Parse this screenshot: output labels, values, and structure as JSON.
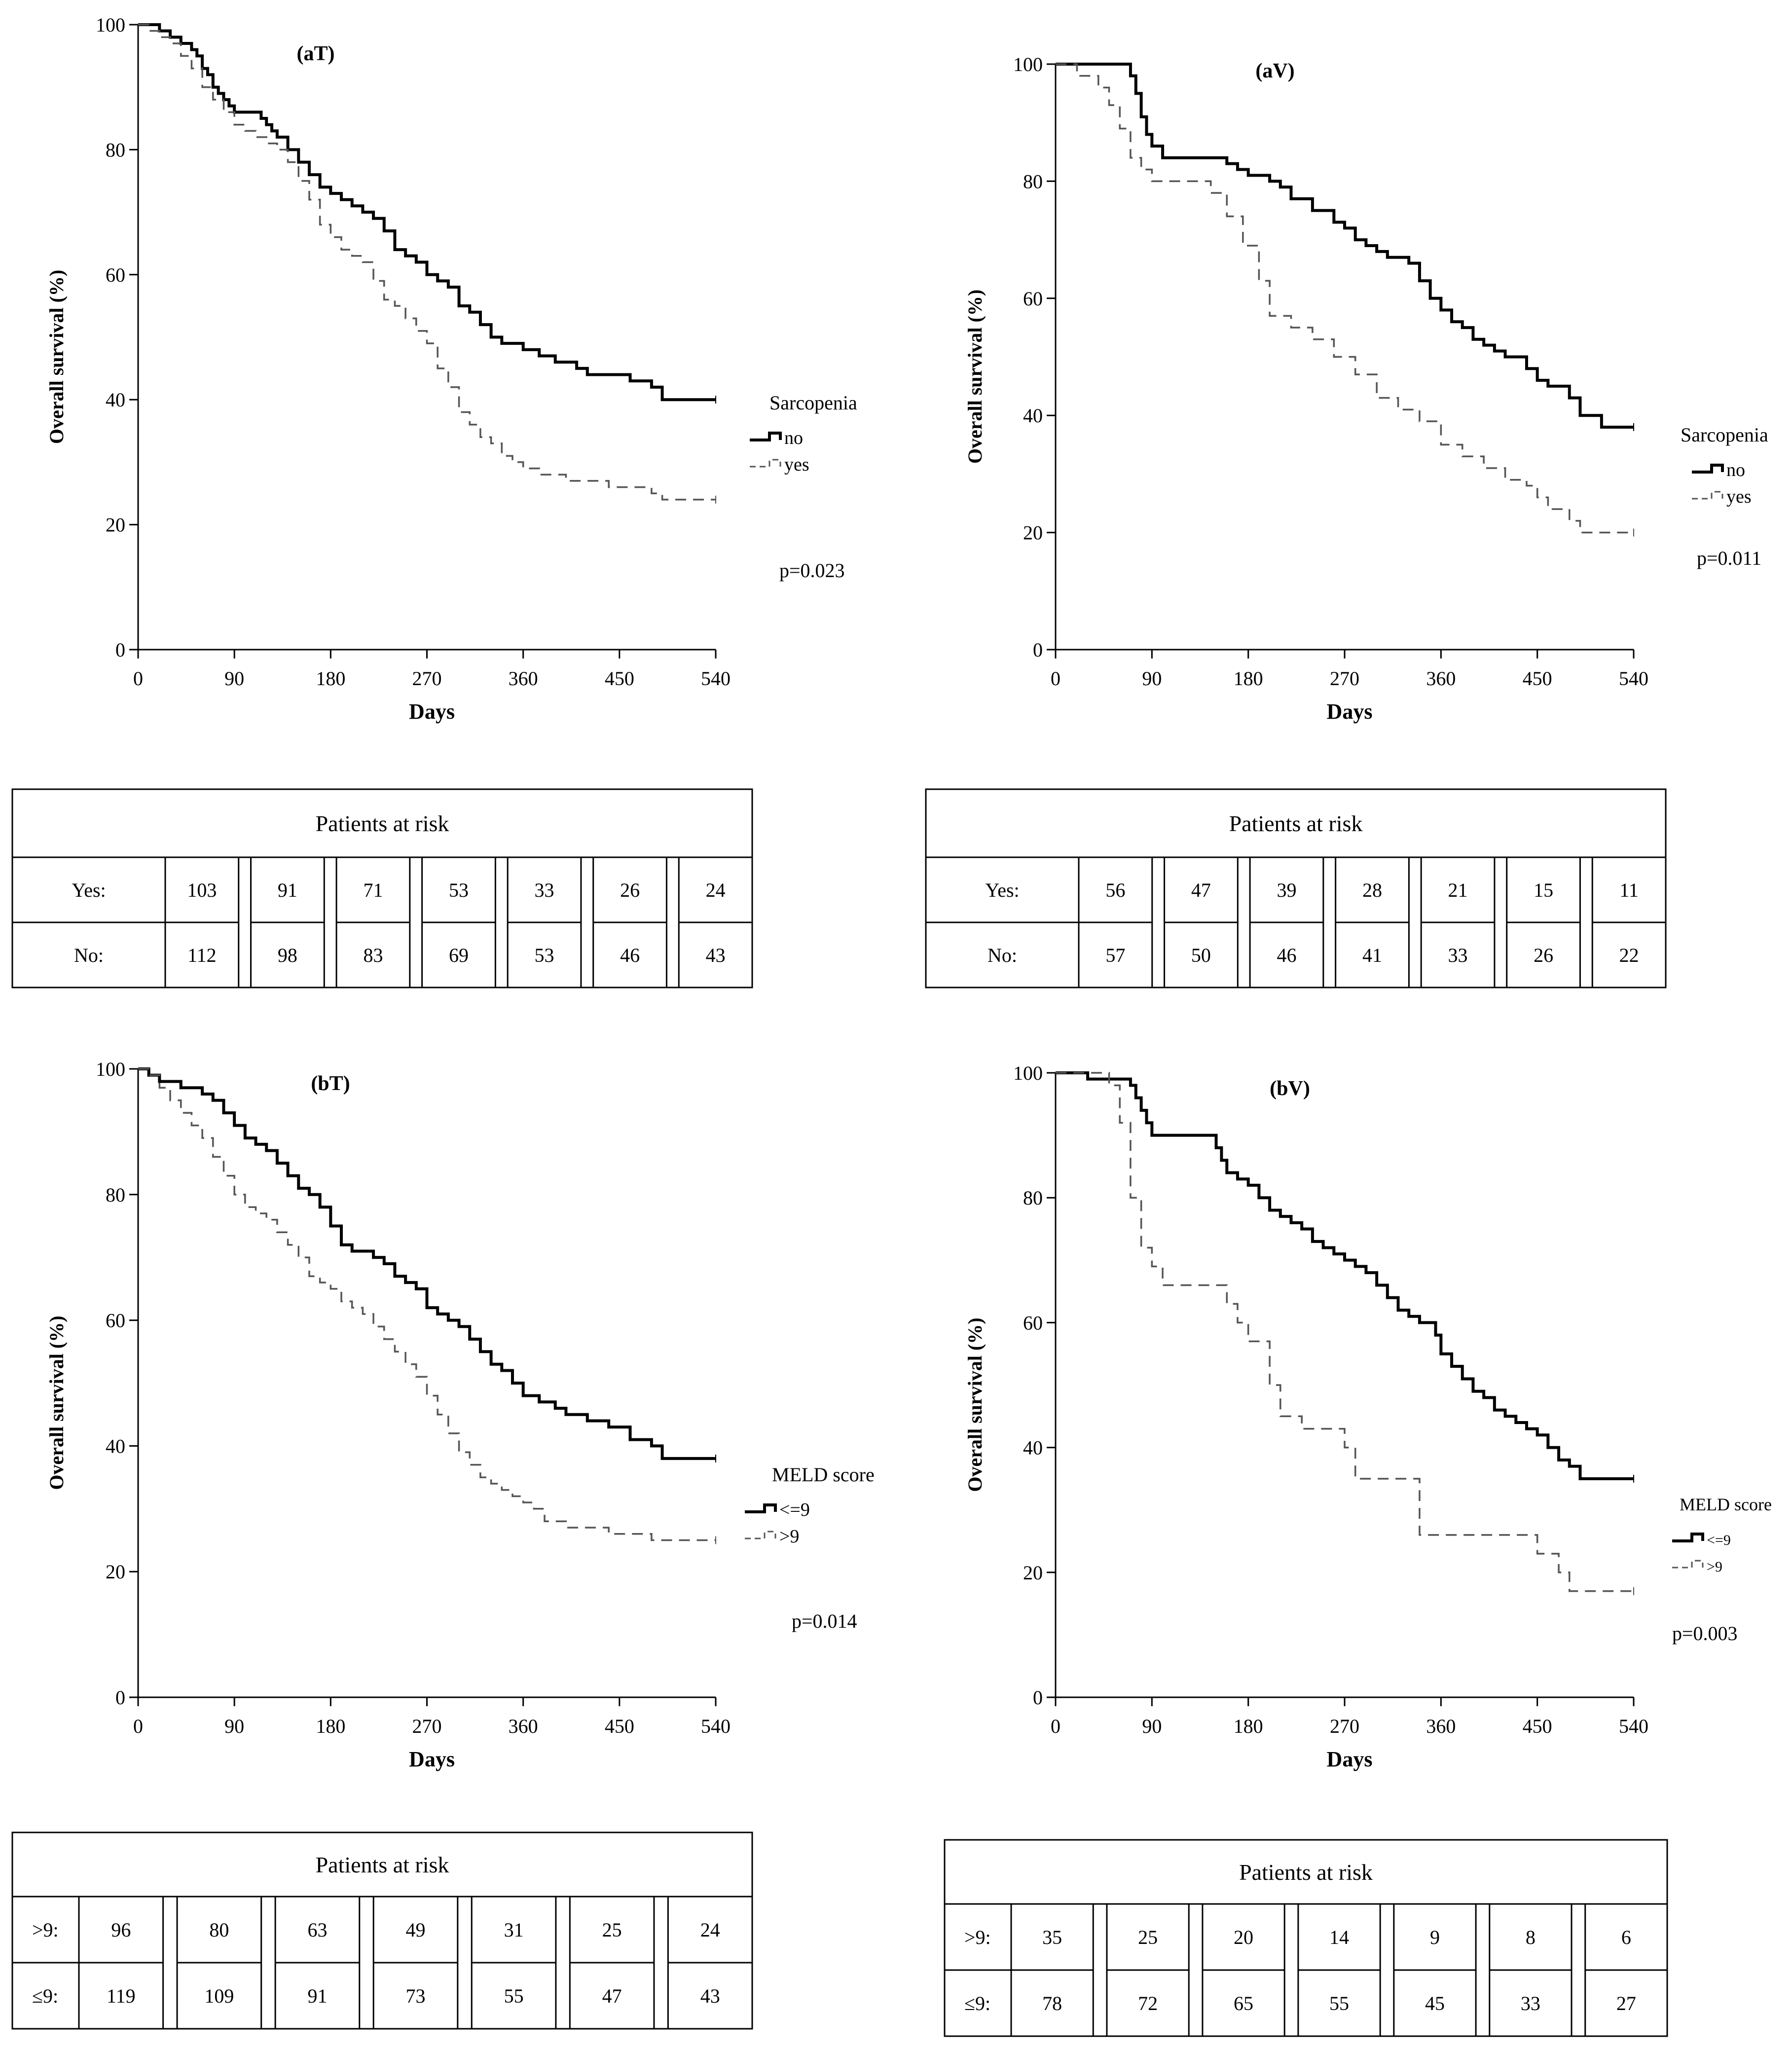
{
  "chart_data": [
    {
      "type": "line",
      "panel": "aT",
      "title": "(aT)",
      "xlabel": "Days",
      "ylabel": "Overall survival (%)",
      "xlim": [
        0,
        540
      ],
      "ylim": [
        0,
        100
      ],
      "xticks": [
        "0",
        "90",
        "180",
        "270",
        "360",
        "450",
        "540"
      ],
      "yticks": [
        "0",
        "20",
        "40",
        "60",
        "80",
        "100"
      ],
      "legend_title": "Sarcopenia",
      "p_value": "p=0.023",
      "series": [
        {
          "name": "no",
          "style": "solid",
          "x": [
            0,
            15,
            20,
            30,
            40,
            50,
            55,
            60,
            65,
            70,
            75,
            80,
            85,
            90,
            100,
            110,
            115,
            120,
            125,
            130,
            140,
            150,
            160,
            170,
            180,
            190,
            200,
            210,
            220,
            230,
            240,
            250,
            260,
            270,
            280,
            290,
            300,
            310,
            320,
            330,
            340,
            350,
            360,
            375,
            390,
            410,
            420,
            440,
            460,
            480,
            490,
            540
          ],
          "y": [
            100,
            100,
            99,
            98,
            97,
            96,
            95,
            93,
            92,
            90,
            89,
            88,
            87,
            86,
            86,
            86,
            85,
            84,
            83,
            82,
            80,
            78,
            76,
            74,
            73,
            72,
            71,
            70,
            69,
            67,
            64,
            63,
            62,
            60,
            59,
            58,
            55,
            54,
            52,
            50,
            49,
            49,
            48,
            47,
            46,
            45,
            44,
            44,
            43,
            42,
            40,
            40
          ]
        },
        {
          "name": "yes",
          "style": "dashed",
          "x": [
            0,
            10,
            20,
            30,
            40,
            50,
            60,
            70,
            80,
            90,
            100,
            110,
            120,
            130,
            140,
            150,
            160,
            170,
            180,
            190,
            200,
            210,
            220,
            230,
            240,
            250,
            260,
            270,
            280,
            290,
            300,
            310,
            320,
            330,
            340,
            350,
            360,
            375,
            390,
            400,
            420,
            440,
            460,
            480,
            490,
            540
          ],
          "y": [
            100,
            99,
            98,
            97,
            95,
            93,
            90,
            88,
            86,
            84,
            83,
            82,
            81,
            80,
            78,
            75,
            72,
            68,
            66,
            64,
            63,
            62,
            59,
            56,
            55,
            53,
            51,
            49,
            45,
            42,
            38,
            36,
            34,
            33,
            31,
            30,
            29,
            28,
            28,
            27,
            27,
            26,
            26,
            25,
            24,
            24
          ]
        }
      ]
    },
    {
      "type": "line",
      "panel": "aV",
      "title": "(aV)",
      "xlabel": "Days",
      "ylabel": "Overall survival (%)",
      "xlim": [
        0,
        540
      ],
      "ylim": [
        0,
        100
      ],
      "xticks": [
        "0",
        "90",
        "180",
        "270",
        "360",
        "450",
        "540"
      ],
      "yticks": [
        "0",
        "20",
        "40",
        "60",
        "80",
        "100"
      ],
      "legend_title": "Sarcopenia",
      "p_value": "p=0.011",
      "series": [
        {
          "name": "no",
          "style": "solid",
          "x": [
            0,
            50,
            70,
            75,
            80,
            85,
            90,
            100,
            120,
            150,
            160,
            170,
            180,
            190,
            200,
            210,
            220,
            240,
            260,
            270,
            280,
            290,
            300,
            310,
            320,
            330,
            340,
            350,
            360,
            370,
            380,
            390,
            400,
            410,
            420,
            440,
            450,
            460,
            480,
            490,
            510,
            540
          ],
          "y": [
            100,
            100,
            98,
            95,
            91,
            88,
            86,
            84,
            84,
            84,
            83,
            82,
            81,
            81,
            80,
            79,
            77,
            75,
            73,
            72,
            70,
            69,
            68,
            67,
            67,
            66,
            63,
            60,
            58,
            56,
            55,
            53,
            52,
            51,
            50,
            48,
            46,
            45,
            43,
            40,
            38,
            38
          ]
        },
        {
          "name": "yes",
          "style": "dashed",
          "x": [
            0,
            20,
            40,
            50,
            60,
            70,
            80,
            90,
            110,
            130,
            145,
            160,
            175,
            190,
            200,
            220,
            240,
            260,
            280,
            300,
            320,
            340,
            360,
            380,
            400,
            420,
            440,
            450,
            460,
            480,
            490,
            540
          ],
          "y": [
            100,
            98,
            96,
            93,
            89,
            84,
            82,
            80,
            80,
            80,
            78,
            74,
            69,
            63,
            57,
            55,
            53,
            50,
            47,
            43,
            41,
            39,
            35,
            33,
            31,
            29,
            28,
            26,
            24,
            22,
            20,
            20
          ]
        }
      ]
    },
    {
      "type": "line",
      "panel": "bT",
      "title": "(bT)",
      "xlabel": "Days",
      "ylabel": "Overall survival (%)",
      "xlim": [
        0,
        540
      ],
      "ylim": [
        0,
        100
      ],
      "xticks": [
        "0",
        "90",
        "180",
        "270",
        "360",
        "450",
        "540"
      ],
      "yticks": [
        "0",
        "20",
        "40",
        "60",
        "80",
        "100"
      ],
      "legend_title": "MELD score",
      "p_value": "p=0.014",
      "series": [
        {
          "name": "<=9",
          "style": "solid",
          "x": [
            0,
            10,
            20,
            30,
            40,
            50,
            60,
            70,
            80,
            90,
            100,
            110,
            120,
            130,
            140,
            150,
            160,
            170,
            180,
            190,
            200,
            210,
            220,
            230,
            240,
            250,
            260,
            270,
            280,
            290,
            300,
            310,
            320,
            330,
            340,
            350,
            360,
            375,
            390,
            400,
            420,
            440,
            460,
            480,
            490,
            540
          ],
          "y": [
            100,
            99,
            98,
            98,
            97,
            97,
            96,
            95,
            93,
            91,
            89,
            88,
            87,
            85,
            83,
            81,
            80,
            78,
            75,
            72,
            71,
            71,
            70,
            69,
            67,
            66,
            65,
            62,
            61,
            60,
            59,
            57,
            55,
            53,
            52,
            50,
            48,
            47,
            46,
            45,
            44,
            43,
            41,
            40,
            38,
            38
          ]
        },
        {
          "name": ">9",
          "style": "dashed",
          "x": [
            0,
            10,
            20,
            30,
            40,
            50,
            60,
            70,
            80,
            90,
            100,
            110,
            120,
            130,
            140,
            150,
            160,
            170,
            180,
            190,
            200,
            210,
            220,
            230,
            240,
            250,
            260,
            270,
            280,
            290,
            300,
            310,
            320,
            330,
            340,
            350,
            360,
            370,
            380,
            390,
            400,
            420,
            440,
            460,
            480,
            540
          ],
          "y": [
            100,
            99,
            97,
            95,
            93,
            91,
            89,
            86,
            83,
            80,
            78,
            77,
            76,
            74,
            72,
            70,
            67,
            66,
            65,
            63,
            62,
            61,
            59,
            57,
            55,
            53,
            51,
            48,
            45,
            42,
            39,
            37,
            35,
            34,
            33,
            32,
            31,
            30,
            28,
            28,
            27,
            27,
            26,
            26,
            25,
            25
          ]
        }
      ]
    },
    {
      "type": "line",
      "panel": "bV",
      "title": "(bV)",
      "xlabel": "Days",
      "ylabel": "Overall survival (%)",
      "xlim": [
        0,
        540
      ],
      "ylim": [
        0,
        100
      ],
      "xticks": [
        "0",
        "90",
        "180",
        "270",
        "360",
        "450",
        "540"
      ],
      "yticks": [
        "0",
        "20",
        "40",
        "60",
        "80",
        "100"
      ],
      "legend_title": "MELD score",
      "p_value": "p=0.003",
      "series": [
        {
          "name": "<=9",
          "style": "solid",
          "x": [
            0,
            20,
            30,
            60,
            70,
            75,
            80,
            85,
            90,
            100,
            110,
            120,
            140,
            150,
            155,
            160,
            170,
            180,
            190,
            200,
            210,
            220,
            230,
            240,
            250,
            260,
            270,
            280,
            290,
            300,
            310,
            320,
            330,
            340,
            350,
            355,
            360,
            370,
            380,
            390,
            400,
            410,
            420,
            430,
            440,
            450,
            460,
            470,
            480,
            490,
            540
          ],
          "y": [
            100,
            100,
            99,
            99,
            98,
            96,
            94,
            92,
            90,
            90,
            90,
            90,
            90,
            88,
            86,
            84,
            83,
            82,
            80,
            78,
            77,
            76,
            75,
            73,
            72,
            71,
            70,
            69,
            68,
            66,
            64,
            62,
            61,
            60,
            60,
            58,
            55,
            53,
            51,
            49,
            48,
            46,
            45,
            44,
            43,
            42,
            40,
            38,
            37,
            35,
            35
          ]
        },
        {
          "name": ">9",
          "style": "dashed",
          "x": [
            0,
            40,
            50,
            60,
            70,
            80,
            90,
            100,
            130,
            150,
            160,
            170,
            180,
            195,
            200,
            210,
            230,
            270,
            280,
            330,
            340,
            360,
            440,
            450,
            470,
            480,
            540
          ],
          "y": [
            100,
            100,
            98,
            92,
            80,
            72,
            69,
            66,
            66,
            66,
            63,
            60,
            57,
            57,
            50,
            45,
            43,
            40,
            35,
            35,
            26,
            26,
            26,
            23,
            20,
            17,
            17
          ]
        }
      ]
    }
  ],
  "risk_tables": [
    {
      "title": "Patients at risk",
      "rows": [
        {
          "label": "Yes:",
          "values": [
            "103",
            "91",
            "71",
            "53",
            "33",
            "26",
            "24"
          ]
        },
        {
          "label": "No:",
          "values": [
            "112",
            "98",
            "83",
            "69",
            "53",
            "46",
            "43"
          ]
        }
      ]
    },
    {
      "title": "Patients at risk",
      "rows": [
        {
          "label": "Yes:",
          "values": [
            "56",
            "47",
            "39",
            "28",
            "21",
            "15",
            "11"
          ]
        },
        {
          "label": "No:",
          "values": [
            "57",
            "50",
            "46",
            "41",
            "33",
            "26",
            "22"
          ]
        }
      ]
    },
    {
      "title": "Patients at risk",
      "rows": [
        {
          "label": ">9:",
          "values": [
            "96",
            "80",
            "63",
            "49",
            "31",
            "25",
            "24"
          ]
        },
        {
          "label": "≤9:",
          "values": [
            "119",
            "109",
            "91",
            "73",
            "55",
            "47",
            "43"
          ]
        }
      ]
    },
    {
      "title": "Patients at risk",
      "rows": [
        {
          "label": ">9:",
          "values": [
            "35",
            "25",
            "20",
            "14",
            "9",
            "8",
            "6"
          ]
        },
        {
          "label": "≤9:",
          "values": [
            "78",
            "72",
            "65",
            "55",
            "45",
            "33",
            "27"
          ]
        }
      ]
    }
  ]
}
